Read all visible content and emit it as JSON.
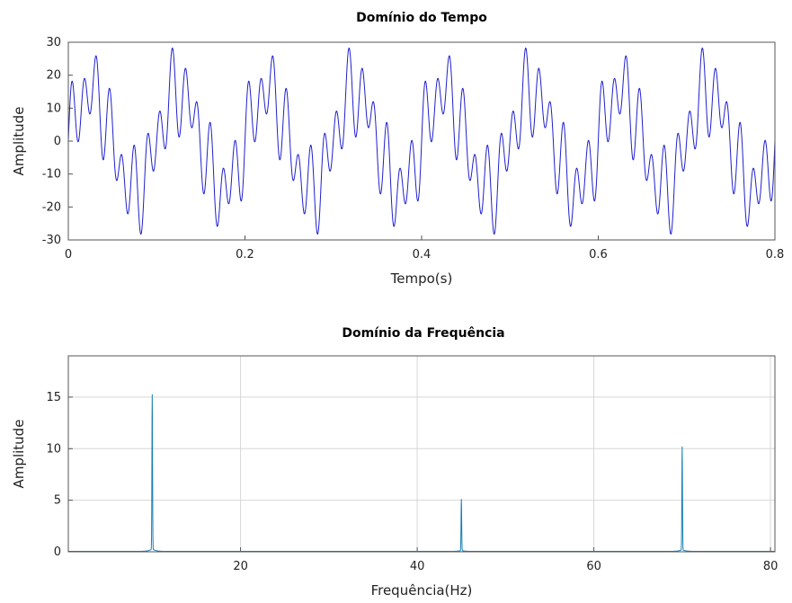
{
  "chart_data": [
    {
      "type": "line",
      "title": "Domínio do Tempo",
      "xlabel": "Tempo(s)",
      "ylabel": "Amplitude",
      "xlim": [
        0,
        0.8
      ],
      "ylim": [
        -30,
        30
      ],
      "xticks": [
        0,
        0.2,
        0.4,
        0.6,
        0.8
      ],
      "xtick_labels": [
        "0",
        "0.2",
        "0.4",
        "0.6",
        "0.8"
      ],
      "yticks": [
        30,
        20,
        10,
        0,
        -10,
        -20,
        -30
      ],
      "ytick_labels": [
        "30",
        "20",
        "10",
        "0",
        "-10",
        "-20",
        "-30"
      ],
      "grid": false,
      "line_color": "#1f1fcf",
      "components": [
        {
          "frequency_hz": 10,
          "amplitude": 15
        },
        {
          "frequency_hz": 45,
          "amplitude": 5
        },
        {
          "frequency_hz": 70,
          "amplitude": 10
        }
      ]
    },
    {
      "type": "line",
      "title": "Domínio da Frequência",
      "xlabel": "Frequência(Hz)",
      "ylabel": "Amplitude",
      "xlim": [
        0.5,
        80.5
      ],
      "ylim": [
        0,
        19
      ],
      "xticks": [
        20,
        40,
        60,
        80
      ],
      "xtick_labels": [
        "20",
        "40",
        "60",
        "80"
      ],
      "yticks": [
        15,
        10,
        5,
        0
      ],
      "ytick_labels": [
        "15",
        "10",
        "5",
        "0"
      ],
      "grid": true,
      "line_color": "#1a7fb5",
      "peaks": [
        {
          "frequency_hz": 10,
          "amplitude": 15
        },
        {
          "frequency_hz": 45,
          "amplitude": 5
        },
        {
          "frequency_hz": 70,
          "amplitude": 10
        }
      ]
    }
  ]
}
